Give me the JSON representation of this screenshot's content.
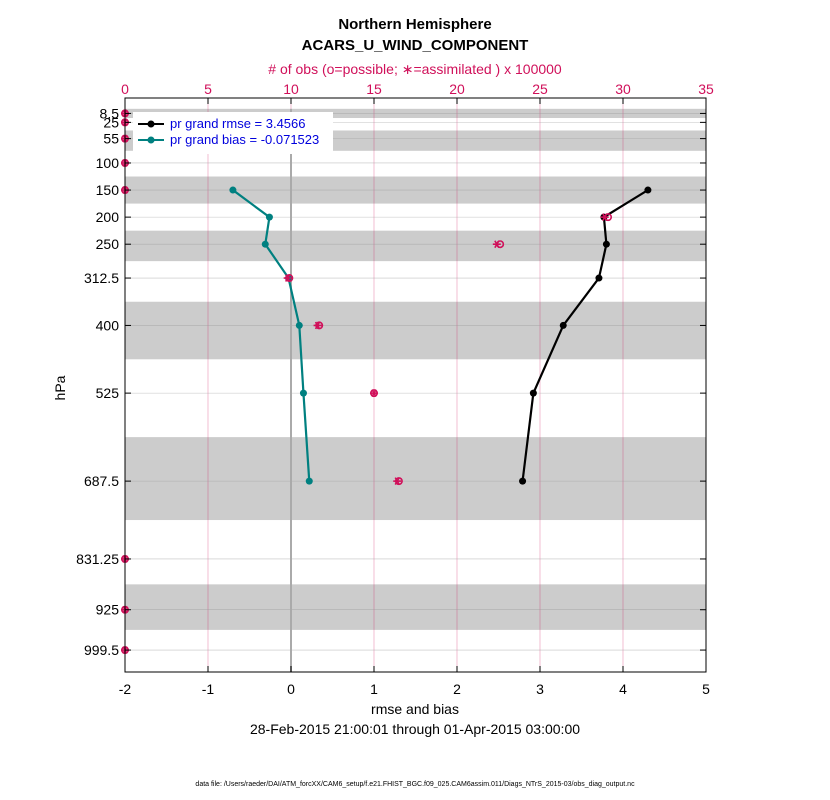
{
  "chart_data": {
    "type": "line",
    "title": "Northern Hemisphere",
    "subtitle": "ACARS_U_WIND_COMPONENT",
    "top_axis_label": "# of obs (o=possible; ∗=assimilated ) x 100000",
    "xlabel": "rmse and bias",
    "ylabel": "hPa",
    "date_range": "28-Feb-2015 21:00:01 through 01-Apr-2015 03:00:00",
    "footer": "data file: /Users/raeder/DAI/ATM_forcXX/CAM6_setup/f.e21.FHIST_BGC.f09_025.CAM6assim.011/Diags_NTrS_2015-03/obs_diag_output.nc",
    "xlim": [
      -2,
      5
    ],
    "x_ticks": [
      "-2",
      "-1",
      "0",
      "1",
      "2",
      "3",
      "4",
      "5"
    ],
    "top_xlim": [
      0,
      35
    ],
    "top_ticks": [
      "0",
      "5",
      "10",
      "15",
      "20",
      "25",
      "30",
      "35"
    ],
    "y_levels": [
      8.5,
      25,
      55,
      100,
      150,
      200,
      250,
      312.5,
      400,
      525,
      687.5,
      831.25,
      925,
      999.5
    ],
    "y_tick_labels": [
      "8.5",
      "25",
      "55",
      "100",
      "150",
      "200",
      "250",
      "312.5",
      "400",
      "525",
      "687.5",
      "831.25",
      "925",
      "999.5"
    ],
    "y_range_hPa": [
      -20,
      1040
    ],
    "shaded_bands_hPa": [
      [
        0,
        17
      ],
      [
        40,
        77.5
      ],
      [
        125,
        175
      ],
      [
        225,
        281.25
      ],
      [
        356.25,
        462.5
      ],
      [
        606.25,
        759.38
      ],
      [
        878.13,
        962.25
      ]
    ],
    "legend_position": "top-left",
    "series": [
      {
        "name": "pr grand rmse = 3.4566",
        "color": "#000000",
        "levels": [
          150,
          200,
          250,
          312.5,
          400,
          525,
          687.5
        ],
        "values": [
          4.3,
          3.77,
          3.8,
          3.71,
          3.28,
          2.92,
          2.79
        ]
      },
      {
        "name": "pr grand bias = -0.071523",
        "color": "#008080",
        "levels": [
          150,
          200,
          250,
          312.5,
          400,
          525,
          687.5
        ],
        "values": [
          -0.7,
          -0.26,
          -0.31,
          -0.03,
          0.1,
          0.15,
          0.22
        ]
      }
    ],
    "obs_counts_x100000": {
      "levels": [
        8.5,
        25,
        55,
        100,
        150,
        200,
        250,
        312.5,
        400,
        525,
        687.5,
        831.25,
        925,
        999.5
      ],
      "possible": [
        0,
        0,
        0,
        0,
        0,
        29.1,
        22.6,
        9.9,
        11.7,
        15.0,
        16.5,
        0,
        0,
        0
      ],
      "assimilated": [
        0,
        0,
        0,
        0,
        0,
        28.9,
        22.4,
        9.8,
        11.6,
        15.0,
        16.4,
        0,
        0,
        0
      ],
      "color": "#d0105a"
    }
  }
}
